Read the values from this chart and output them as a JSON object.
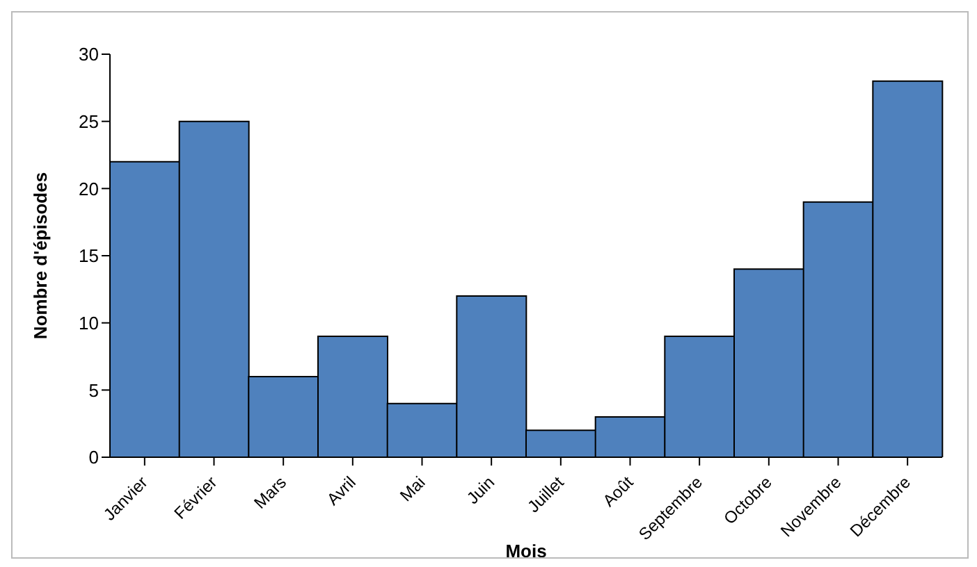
{
  "chart_data": {
    "type": "bar",
    "xlabel": "Mois",
    "ylabel": "Nombre d'épisodes",
    "categories": [
      "Janvier",
      "Février",
      "Mars",
      "Avril",
      "Mai",
      "Juin",
      "Juillet",
      "Août",
      "Septembre",
      "Octobre",
      "Novembre",
      "Décembre"
    ],
    "values": [
      22,
      25,
      6,
      9,
      4,
      12,
      2,
      3,
      9,
      14,
      19,
      28
    ],
    "color": "#4f81bd",
    "ylim": [
      0,
      30
    ],
    "yticks": [
      0,
      5,
      10,
      15,
      20,
      25,
      30
    ],
    "grid": false,
    "legend": false
  }
}
